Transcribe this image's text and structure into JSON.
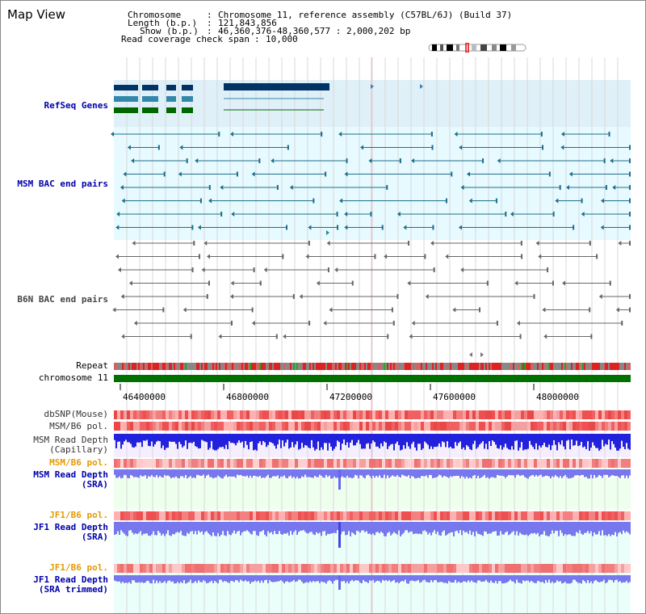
{
  "title": "Map View",
  "info": {
    "chromosome_key": "Chromosome",
    "chromosome_val": "Chromosome 11, reference assembly (C57BL/6J) (Build 37)",
    "length_key": "Length (b.p.)",
    "length_val": "121,843,856",
    "show_key": "Show (b.p.)",
    "show_val": "46,360,376-48,360,577 : 2,000,202 bp",
    "coverage_key": "Read coverage check span",
    "coverage_val": "10,000"
  },
  "tracks": {
    "refseq": "RefSeq Genes",
    "msm_bac": "MSM BAC end pairs",
    "b6n_bac": "B6N BAC end pairs",
    "repeat": "Repeat",
    "chromosome": "chromosome 11",
    "dbsnp": "dbSNP(Mouse)",
    "msm_pol1": "MSM/B6 pol.",
    "msm_depth_cap_1": "MSM Read Depth",
    "msm_depth_cap_2": "(Capillary)",
    "msm_pol2": "MSM/B6 pol.",
    "msm_depth_sra_1": "MSM Read Depth",
    "msm_depth_sra_2": "(SRA)",
    "jf1_pol1": "JF1/B6 pol.",
    "jf1_depth_sra_1": "JF1 Read Depth",
    "jf1_depth_sra_2": "(SRA)",
    "jf1_pol2": "JF1/B6 pol.",
    "jf1_depth_trim_1": "JF1 Read Depth",
    "jf1_depth_trim_2": "(SRA trimmed)"
  },
  "axis": {
    "ticks": [
      "46400000",
      "46800000",
      "47200000",
      "47600000",
      "48000000"
    ]
  },
  "colors": {
    "label_blue": "#0000aa",
    "label_orange": "#e69a00",
    "refseq_bg": "#dff0f8",
    "msm_bg": "#e6faff",
    "chrom_green": "#007000"
  }
}
